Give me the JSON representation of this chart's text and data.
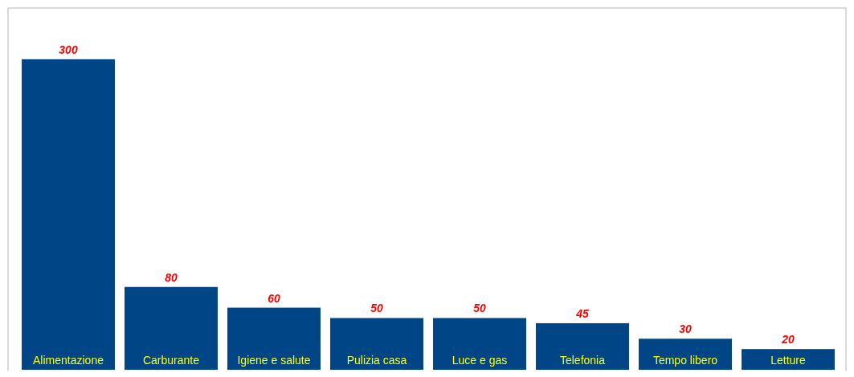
{
  "chart_data": {
    "type": "bar",
    "categories": [
      "Alimentazione",
      "Carburante",
      "Igiene e salute",
      "Pulizia casa",
      "Luce e gas",
      "Telefonia",
      "Tempo libero",
      "Letture"
    ],
    "values": [
      300,
      80,
      60,
      50,
      50,
      45,
      30,
      20
    ],
    "color": "#004586",
    "data_labels": true
  }
}
